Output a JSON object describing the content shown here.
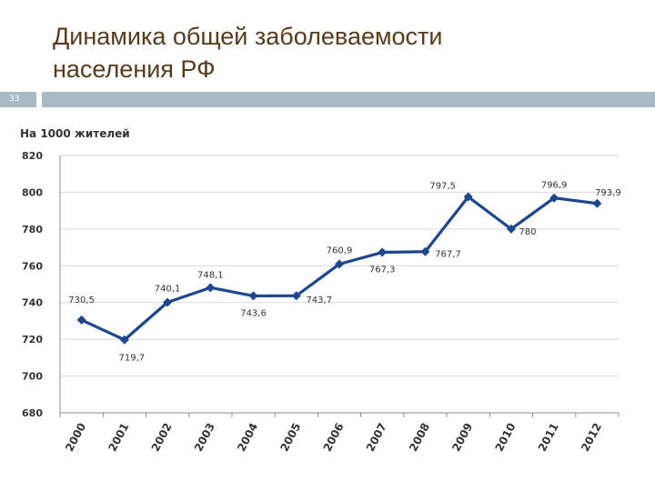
{
  "slide": {
    "title_lines": [
      "Динамика общей заболеваемости",
      "населения РФ"
    ],
    "number": "33"
  },
  "colors": {
    "title": "#5a3a1a",
    "band": "#a9bcc5",
    "series": "#1c4690",
    "grid": "#d9d9d9",
    "text": "#333333"
  },
  "chart_data": {
    "type": "line",
    "ylabel": "На 1000 жителей",
    "ylim": [
      680,
      820
    ],
    "yticks": [
      "680",
      "700",
      "720",
      "740",
      "760",
      "780",
      "800",
      "820"
    ],
    "grid": true,
    "x": [
      "2000",
      "2001",
      "2002",
      "2003",
      "2004",
      "2005",
      "2006",
      "2007",
      "2008",
      "2009",
      "2010",
      "2011",
      "2012"
    ],
    "series": [
      {
        "values": [
          730.5,
          719.7,
          740.1,
          748.1,
          743.6,
          743.7,
          760.9,
          767.3,
          767.7,
          797.5,
          780,
          796.9,
          793.9
        ],
        "labels": [
          "730,5",
          "719,7",
          "740,1",
          "748,1",
          "743,6",
          "743,7",
          "760,9",
          "767,3",
          "767,7",
          "797,5",
          "780",
          "796,9",
          "793,9"
        ]
      }
    ]
  }
}
